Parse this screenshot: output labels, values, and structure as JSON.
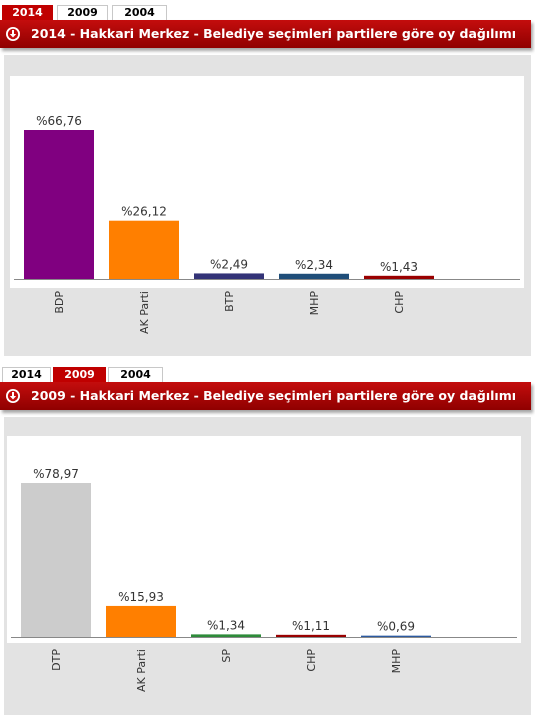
{
  "panels": [
    {
      "tabs": [
        "2014",
        "2009",
        "2004"
      ],
      "active_tab": 0,
      "title": "2014 - Hakkari Merkez - Belediye seçimleri partilere göre oy dağılımı"
    },
    {
      "tabs": [
        "2014",
        "2009",
        "2004"
      ],
      "active_tab": 1,
      "title": "2009 - Hakkari Merkez - Belediye seçimleri partilere göre oy dağılımı"
    }
  ],
  "colors": {
    "accent": "#c00000",
    "BDP": "#800080",
    "AK Parti": "#ff7f00",
    "BTP": "#333377",
    "MHP": "#1f4e79",
    "CHP": "#990000",
    "DTP": "#cccccc",
    "SP": "#2e8b3a",
    "MHP_2009": "#2c5aa0"
  },
  "chart_data": [
    {
      "type": "bar",
      "title": "2014 - Hakkari Merkez - Belediye seçimleri partilere göre oy dağılımı",
      "categories": [
        "BDP",
        "AK Parti",
        "BTP",
        "MHP",
        "CHP"
      ],
      "values": [
        66.76,
        26.12,
        2.49,
        2.34,
        1.43
      ],
      "labels": [
        "%66,76",
        "%26,12",
        "%2,49",
        "%2,34",
        "%1,43"
      ],
      "bar_colors": [
        "#800080",
        "#ff7f00",
        "#333377",
        "#1f4e79",
        "#990000"
      ],
      "ylim": [
        0,
        70
      ],
      "grid": false,
      "legend": "none"
    },
    {
      "type": "bar",
      "title": "2009 - Hakkari Merkez - Belediye seçimleri partilere göre oy dağılımı",
      "categories": [
        "DTP",
        "AK Parti",
        "SP",
        "CHP",
        "MHP"
      ],
      "values": [
        78.97,
        15.93,
        1.34,
        1.11,
        0.69
      ],
      "labels": [
        "%78,97",
        "%15,93",
        "%1,34",
        "%1,11",
        "%0,69"
      ],
      "bar_colors": [
        "#cccccc",
        "#ff7f00",
        "#2e8b3a",
        "#990000",
        "#2c5aa0"
      ],
      "ylim": [
        0,
        80
      ],
      "grid": false,
      "legend": "none"
    }
  ]
}
